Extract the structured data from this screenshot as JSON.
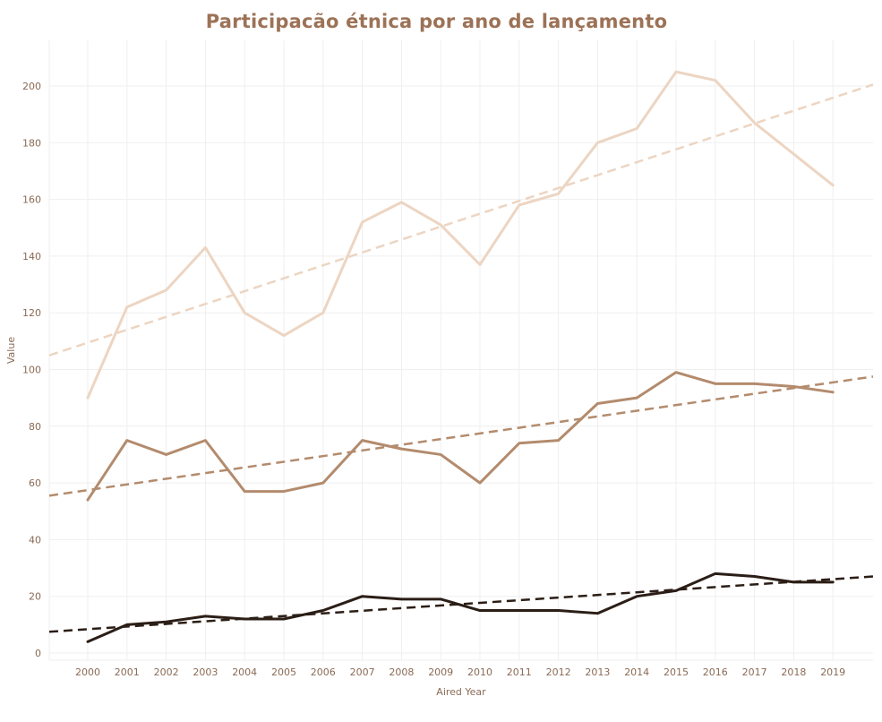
{
  "chart_data": {
    "type": "line",
    "title": "Participacão étnica por ano de lançamento",
    "xlabel": "Aired Year",
    "ylabel": "Value",
    "x": [
      2000,
      2001,
      2002,
      2003,
      2004,
      2005,
      2006,
      2007,
      2008,
      2009,
      2010,
      2011,
      2012,
      2013,
      2014,
      2015,
      2016,
      2017,
      2018,
      2019
    ],
    "ylim": [
      -3,
      215
    ],
    "yticks": [
      0,
      20,
      40,
      60,
      80,
      100,
      120,
      140,
      160,
      180,
      200
    ],
    "grid": true,
    "legend": "none",
    "series": [
      {
        "color": "#ecd5c2",
        "values": [
          90,
          122,
          128,
          143,
          120,
          112,
          120,
          152,
          159,
          151,
          137,
          158,
          162,
          180,
          185,
          205,
          202,
          187,
          176,
          165
        ],
        "trend": [
          105,
          200.5
        ]
      },
      {
        "color": "#b38b6d",
        "values": [
          54,
          75,
          70,
          75,
          57,
          57,
          60,
          75,
          72,
          70,
          60,
          74,
          75,
          88,
          90,
          99,
          95,
          95,
          94,
          92
        ],
        "trend": [
          55.5,
          97.5
        ]
      },
      {
        "color": "#2b1e16",
        "values": [
          4,
          10,
          11,
          13,
          12,
          12,
          15,
          20,
          19,
          19,
          15,
          15,
          15,
          14,
          20,
          22,
          28,
          27,
          25,
          25
        ],
        "trend": [
          7.5,
          27
        ]
      }
    ]
  }
}
